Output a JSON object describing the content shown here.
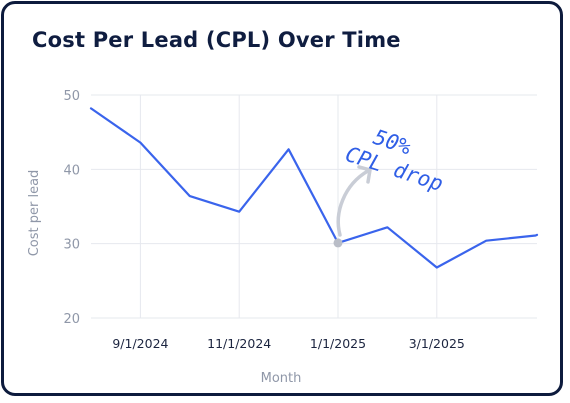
{
  "chart_data": {
    "type": "line",
    "title": "Cost Per Lead (CPL) Over Time",
    "xlabel": "Month",
    "ylabel": "Cost per lead",
    "ylim": [
      20,
      50
    ],
    "yticks": [
      20,
      30,
      40,
      50
    ],
    "xtick_labels": [
      "9/1/2024",
      "11/1/2024",
      "1/1/2025",
      "3/1/2025"
    ],
    "x": [
      "2024-08-01",
      "2024-09-01",
      "2024-10-01",
      "2024-11-01",
      "2024-12-01",
      "2025-01-01",
      "2025-02-01",
      "2025-03-01",
      "2025-04-01",
      "2025-05-01"
    ],
    "series": [
      {
        "values": [
          48.2,
          43.6,
          36.4,
          34.3,
          42.7,
          30.1,
          32.2,
          26.8,
          30.4,
          31.1
        ],
        "color": "#3a64ec"
      }
    ],
    "annotation": {
      "text_line1": "50%",
      "text_line2": "CPL drop",
      "at_x": "2025-01-01"
    },
    "grid": true
  },
  "colors": {
    "line": "#3a64ec",
    "grid": "#e6e8ee",
    "border": "#0d1b3d",
    "annotation_arrow": "#c9cdd6",
    "marker": "#b9bdc7"
  }
}
